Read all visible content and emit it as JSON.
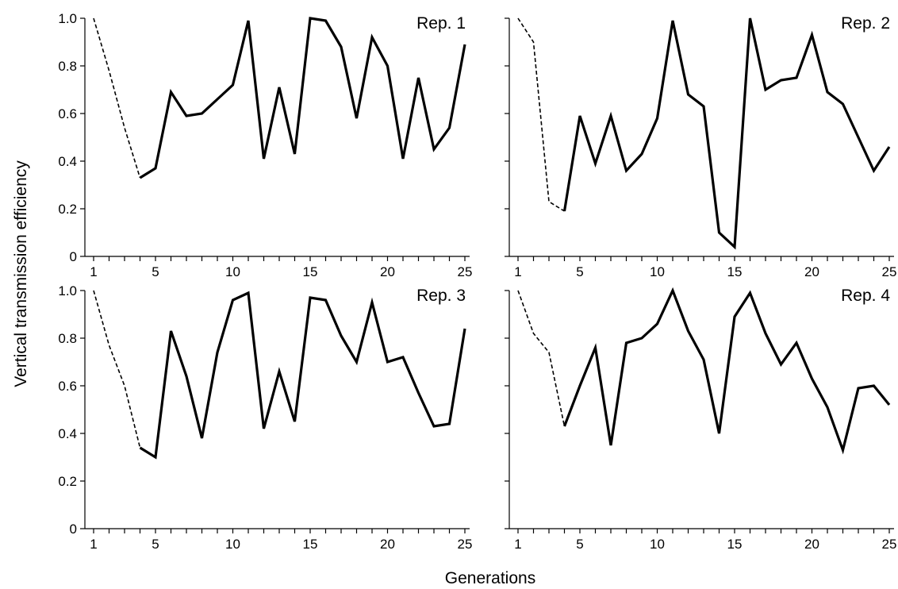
{
  "figure": {
    "xlabel": "Generations",
    "ylabel": "Vertical transmission efficiency"
  },
  "chart_data": [
    {
      "type": "line",
      "label": "Rep. 1",
      "xlim": [
        1,
        25
      ],
      "ylim": [
        0,
        1.0
      ],
      "x_tick_labels": [
        "1",
        "5",
        "10",
        "15",
        "20",
        "25"
      ],
      "y_tick_labels": [
        "0",
        "0.2",
        "0.4",
        "0.6",
        "0.8",
        "1.0"
      ],
      "series": [
        {
          "style": "dashed",
          "x": [
            1,
            2,
            3,
            4
          ],
          "values": [
            1.0,
            0.78,
            0.54,
            0.33
          ]
        },
        {
          "style": "solid",
          "x": [
            4,
            5,
            6,
            7,
            8,
            9,
            10,
            11,
            12,
            13,
            14,
            15,
            16,
            17,
            18,
            19,
            20,
            21,
            22,
            23,
            24,
            25
          ],
          "values": [
            0.33,
            0.37,
            0.69,
            0.59,
            0.6,
            0.66,
            0.72,
            0.99,
            0.41,
            0.71,
            0.43,
            1.0,
            0.99,
            0.88,
            0.58,
            0.92,
            0.8,
            0.41,
            0.75,
            0.45,
            0.54,
            0.89
          ]
        }
      ]
    },
    {
      "type": "line",
      "label": "Rep. 2",
      "xlim": [
        1,
        25
      ],
      "ylim": [
        0,
        1.0
      ],
      "x_tick_labels": [
        "1",
        "5",
        "10",
        "15",
        "20",
        "25"
      ],
      "y_tick_labels": [],
      "series": [
        {
          "style": "dashed",
          "x": [
            1,
            2,
            3,
            4
          ],
          "values": [
            1.0,
            0.9,
            0.23,
            0.19
          ]
        },
        {
          "style": "solid",
          "x": [
            4,
            5,
            6,
            7,
            8,
            9,
            10,
            11,
            12,
            13,
            14,
            15,
            16,
            17,
            18,
            19,
            20,
            21,
            22,
            23,
            24,
            25
          ],
          "values": [
            0.19,
            0.59,
            0.39,
            0.59,
            0.36,
            0.43,
            0.58,
            0.99,
            0.68,
            0.63,
            0.1,
            0.04,
            1.0,
            0.7,
            0.74,
            0.75,
            0.93,
            0.69,
            0.64,
            0.5,
            0.36,
            0.46
          ]
        }
      ]
    },
    {
      "type": "line",
      "label": "Rep. 3",
      "xlim": [
        1,
        25
      ],
      "ylim": [
        0,
        1.0
      ],
      "x_tick_labels": [
        "1",
        "5",
        "10",
        "15",
        "20",
        "25"
      ],
      "y_tick_labels": [
        "0",
        "0.2",
        "0.4",
        "0.6",
        "0.8",
        "1.0"
      ],
      "series": [
        {
          "style": "dashed",
          "x": [
            1,
            2,
            3,
            4
          ],
          "values": [
            1.0,
            0.77,
            0.6,
            0.34
          ]
        },
        {
          "style": "solid",
          "x": [
            4,
            5,
            6,
            7,
            8,
            9,
            10,
            11,
            12,
            13,
            14,
            15,
            16,
            17,
            18,
            19,
            20,
            21,
            22,
            23,
            24,
            25
          ],
          "values": [
            0.34,
            0.3,
            0.83,
            0.64,
            0.38,
            0.74,
            0.96,
            0.99,
            0.42,
            0.66,
            0.45,
            0.97,
            0.96,
            0.81,
            0.7,
            0.95,
            0.7,
            0.72,
            0.57,
            0.43,
            0.44,
            0.84
          ]
        }
      ]
    },
    {
      "type": "line",
      "label": "Rep. 4",
      "xlim": [
        1,
        25
      ],
      "ylim": [
        0,
        1.0
      ],
      "x_tick_labels": [
        "1",
        "5",
        "10",
        "15",
        "20",
        "25"
      ],
      "y_tick_labels": [],
      "series": [
        {
          "style": "dashed",
          "x": [
            1,
            2,
            3,
            4
          ],
          "values": [
            1.0,
            0.82,
            0.74,
            0.43
          ]
        },
        {
          "style": "solid",
          "x": [
            4,
            5,
            6,
            7,
            8,
            9,
            10,
            11,
            12,
            13,
            14,
            15,
            16,
            17,
            18,
            19,
            20,
            21,
            22,
            23,
            24,
            25
          ],
          "values": [
            0.43,
            0.6,
            0.76,
            0.35,
            0.78,
            0.8,
            0.86,
            1.0,
            0.83,
            0.71,
            0.4,
            0.89,
            0.99,
            0.82,
            0.69,
            0.78,
            0.63,
            0.51,
            0.33,
            0.59,
            0.6,
            0.52
          ]
        }
      ]
    }
  ]
}
